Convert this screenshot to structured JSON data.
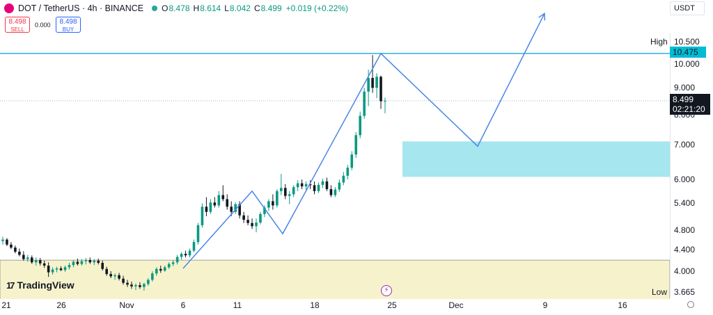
{
  "header": {
    "title": "DOT / TetherUS · 4h · BINANCE",
    "open_label": "O",
    "open": "8.478",
    "high_label": "H",
    "high": "8.614",
    "low_label": "L",
    "low": "8.042",
    "close_label": "C",
    "close": "8.499",
    "change": "+0.019 (+0.22%)"
  },
  "trade": {
    "sell_price": "8.498",
    "sell_label": "SELL",
    "spread": "0.000",
    "buy_price": "8.498",
    "buy_label": "BUY"
  },
  "unit": "USDT",
  "brand": "TradingView",
  "colors": {
    "up": "#089981",
    "down": "#131722",
    "pattern_line": "#4a86e8",
    "high_line": "#00a2d6",
    "supply_zone": "#a6e6ee",
    "demand_zone": "#f6f3cc",
    "price_tag": "#131722",
    "high_tag": "#00bcd4",
    "alert_icon": "#9c27b0"
  },
  "icons": {
    "symbol": "polkadot-logo-icon",
    "status": "market-status-dot-icon",
    "alert": "lightning-bolt-icon",
    "settings": "settings-gear-icon"
  },
  "chart_data": {
    "type": "candlestick",
    "title": "DOT / TetherUS · 4h · BINANCE",
    "y_scale": "log",
    "ylim": [
      3.52,
      12.6
    ],
    "y_ticks": [
      "10.000",
      "9.000",
      "8.000",
      "7.000",
      "6.000",
      "5.400",
      "4.800",
      "4.400",
      "4.000"
    ],
    "x_ticks": [
      "21",
      "26",
      "Nov",
      "6",
      "11",
      "18",
      "25",
      "Dec",
      "9",
      "16"
    ],
    "high": {
      "label": "High",
      "value": "10.500",
      "marker": "10.475"
    },
    "low": {
      "label": "Low",
      "value": "3.665"
    },
    "current_price": {
      "value": "8.499",
      "countdown": "02:21:20"
    },
    "candles": [
      {
        "o": 4.57,
        "h": 4.66,
        "l": 4.5,
        "c": 4.6
      },
      {
        "o": 4.6,
        "h": 4.63,
        "l": 4.47,
        "c": 4.5
      },
      {
        "o": 4.5,
        "h": 4.55,
        "l": 4.41,
        "c": 4.44
      },
      {
        "o": 4.44,
        "h": 4.48,
        "l": 4.33,
        "c": 4.36
      },
      {
        "o": 4.36,
        "h": 4.42,
        "l": 4.27,
        "c": 4.3
      },
      {
        "o": 4.3,
        "h": 4.37,
        "l": 4.19,
        "c": 4.22
      },
      {
        "o": 4.22,
        "h": 4.3,
        "l": 4.17,
        "c": 4.25
      },
      {
        "o": 4.25,
        "h": 4.29,
        "l": 4.13,
        "c": 4.16
      },
      {
        "o": 4.16,
        "h": 4.25,
        "l": 4.1,
        "c": 4.2
      },
      {
        "o": 4.2,
        "h": 4.24,
        "l": 4.1,
        "c": 4.14
      },
      {
        "o": 4.14,
        "h": 4.19,
        "l": 4.06,
        "c": 4.1
      },
      {
        "o": 4.1,
        "h": 4.16,
        "l": 3.9,
        "c": 3.98
      },
      {
        "o": 3.98,
        "h": 4.07,
        "l": 3.94,
        "c": 4.03
      },
      {
        "o": 4.03,
        "h": 4.08,
        "l": 3.98,
        "c": 4.05
      },
      {
        "o": 4.05,
        "h": 4.09,
        "l": 4.0,
        "c": 4.02
      },
      {
        "o": 4.02,
        "h": 4.1,
        "l": 3.99,
        "c": 4.07
      },
      {
        "o": 4.07,
        "h": 4.15,
        "l": 4.03,
        "c": 4.11
      },
      {
        "o": 4.11,
        "h": 4.2,
        "l": 4.07,
        "c": 4.17
      },
      {
        "o": 4.17,
        "h": 4.23,
        "l": 4.1,
        "c": 4.13
      },
      {
        "o": 4.13,
        "h": 4.22,
        "l": 4.1,
        "c": 4.18
      },
      {
        "o": 4.18,
        "h": 4.24,
        "l": 4.12,
        "c": 4.2
      },
      {
        "o": 4.2,
        "h": 4.25,
        "l": 4.13,
        "c": 4.16
      },
      {
        "o": 4.16,
        "h": 4.22,
        "l": 4.11,
        "c": 4.19
      },
      {
        "o": 4.19,
        "h": 4.23,
        "l": 4.12,
        "c": 4.15
      },
      {
        "o": 4.15,
        "h": 4.19,
        "l": 4.01,
        "c": 4.04
      },
      {
        "o": 4.04,
        "h": 4.08,
        "l": 3.92,
        "c": 3.95
      },
      {
        "o": 3.95,
        "h": 4.0,
        "l": 3.88,
        "c": 3.91
      },
      {
        "o": 3.91,
        "h": 3.96,
        "l": 3.85,
        "c": 3.93
      },
      {
        "o": 3.93,
        "h": 3.97,
        "l": 3.84,
        "c": 3.87
      },
      {
        "o": 3.87,
        "h": 3.92,
        "l": 3.77,
        "c": 3.8
      },
      {
        "o": 3.8,
        "h": 3.85,
        "l": 3.73,
        "c": 3.77
      },
      {
        "o": 3.77,
        "h": 3.82,
        "l": 3.7,
        "c": 3.74
      },
      {
        "o": 3.74,
        "h": 3.79,
        "l": 3.68,
        "c": 3.76
      },
      {
        "o": 3.76,
        "h": 3.81,
        "l": 3.7,
        "c": 3.73
      },
      {
        "o": 3.73,
        "h": 3.8,
        "l": 3.67,
        "c": 3.78
      },
      {
        "o": 3.78,
        "h": 3.88,
        "l": 3.75,
        "c": 3.85
      },
      {
        "o": 3.85,
        "h": 4.0,
        "l": 3.82,
        "c": 3.96
      },
      {
        "o": 3.96,
        "h": 4.07,
        "l": 3.92,
        "c": 4.04
      },
      {
        "o": 4.04,
        "h": 4.1,
        "l": 3.97,
        "c": 4.01
      },
      {
        "o": 4.01,
        "h": 4.1,
        "l": 3.99,
        "c": 4.07
      },
      {
        "o": 4.07,
        "h": 4.16,
        "l": 4.04,
        "c": 4.13
      },
      {
        "o": 4.13,
        "h": 4.2,
        "l": 4.09,
        "c": 4.16
      },
      {
        "o": 4.16,
        "h": 4.3,
        "l": 4.12,
        "c": 4.26
      },
      {
        "o": 4.26,
        "h": 4.35,
        "l": 4.21,
        "c": 4.32
      },
      {
        "o": 4.32,
        "h": 4.38,
        "l": 4.25,
        "c": 4.29
      },
      {
        "o": 4.29,
        "h": 4.42,
        "l": 4.25,
        "c": 4.38
      },
      {
        "o": 4.38,
        "h": 4.6,
        "l": 4.35,
        "c": 4.55
      },
      {
        "o": 4.55,
        "h": 4.95,
        "l": 4.5,
        "c": 4.9
      },
      {
        "o": 4.9,
        "h": 5.4,
        "l": 4.85,
        "c": 5.32
      },
      {
        "o": 5.32,
        "h": 5.55,
        "l": 5.1,
        "c": 5.2
      },
      {
        "o": 5.2,
        "h": 5.5,
        "l": 5.15,
        "c": 5.42
      },
      {
        "o": 5.42,
        "h": 5.55,
        "l": 5.3,
        "c": 5.35
      },
      {
        "o": 5.35,
        "h": 5.7,
        "l": 5.3,
        "c": 5.6
      },
      {
        "o": 5.6,
        "h": 5.85,
        "l": 5.45,
        "c": 5.5
      },
      {
        "o": 5.5,
        "h": 5.62,
        "l": 5.25,
        "c": 5.32
      },
      {
        "o": 5.32,
        "h": 5.45,
        "l": 5.1,
        "c": 5.2
      },
      {
        "o": 5.2,
        "h": 5.42,
        "l": 5.15,
        "c": 5.38
      },
      {
        "o": 5.38,
        "h": 5.45,
        "l": 5.05,
        "c": 5.12
      },
      {
        "o": 5.12,
        "h": 5.2,
        "l": 4.95,
        "c": 5.02
      },
      {
        "o": 5.02,
        "h": 5.12,
        "l": 4.9,
        "c": 4.95
      },
      {
        "o": 4.95,
        "h": 5.05,
        "l": 4.82,
        "c": 4.88
      },
      {
        "o": 4.88,
        "h": 5.05,
        "l": 4.75,
        "c": 4.96
      },
      {
        "o": 4.96,
        "h": 5.2,
        "l": 4.92,
        "c": 5.15
      },
      {
        "o": 5.15,
        "h": 5.35,
        "l": 5.08,
        "c": 5.3
      },
      {
        "o": 5.3,
        "h": 5.5,
        "l": 5.22,
        "c": 5.45
      },
      {
        "o": 5.45,
        "h": 5.62,
        "l": 5.25,
        "c": 5.35
      },
      {
        "o": 5.35,
        "h": 5.75,
        "l": 5.3,
        "c": 5.7
      },
      {
        "o": 5.7,
        "h": 6.15,
        "l": 5.6,
        "c": 5.78
      },
      {
        "o": 5.78,
        "h": 5.88,
        "l": 5.5,
        "c": 5.58
      },
      {
        "o": 5.58,
        "h": 5.7,
        "l": 5.38,
        "c": 5.62
      },
      {
        "o": 5.62,
        "h": 5.85,
        "l": 5.55,
        "c": 5.8
      },
      {
        "o": 5.8,
        "h": 5.98,
        "l": 5.7,
        "c": 5.9
      },
      {
        "o": 5.9,
        "h": 6.0,
        "l": 5.75,
        "c": 5.82
      },
      {
        "o": 5.82,
        "h": 5.95,
        "l": 5.7,
        "c": 5.88
      },
      {
        "o": 5.88,
        "h": 5.98,
        "l": 5.75,
        "c": 5.85
      },
      {
        "o": 5.85,
        "h": 5.95,
        "l": 5.62,
        "c": 5.7
      },
      {
        "o": 5.7,
        "h": 5.92,
        "l": 5.65,
        "c": 5.86
      },
      {
        "o": 5.86,
        "h": 6.02,
        "l": 5.78,
        "c": 5.95
      },
      {
        "o": 5.95,
        "h": 6.05,
        "l": 5.7,
        "c": 5.75
      },
      {
        "o": 5.75,
        "h": 5.85,
        "l": 5.55,
        "c": 5.6
      },
      {
        "o": 5.6,
        "h": 5.8,
        "l": 5.55,
        "c": 5.74
      },
      {
        "o": 5.74,
        "h": 6.0,
        "l": 5.68,
        "c": 5.92
      },
      {
        "o": 5.92,
        "h": 6.2,
        "l": 5.85,
        "c": 6.1
      },
      {
        "o": 6.1,
        "h": 6.4,
        "l": 6.0,
        "c": 6.32
      },
      {
        "o": 6.32,
        "h": 6.8,
        "l": 6.25,
        "c": 6.7
      },
      {
        "o": 6.7,
        "h": 7.4,
        "l": 6.6,
        "c": 7.3
      },
      {
        "o": 7.3,
        "h": 8.1,
        "l": 7.2,
        "c": 7.95
      },
      {
        "o": 7.95,
        "h": 9.0,
        "l": 7.85,
        "c": 8.85
      },
      {
        "o": 8.85,
        "h": 9.75,
        "l": 8.3,
        "c": 9.4
      },
      {
        "o": 9.4,
        "h": 10.4,
        "l": 8.8,
        "c": 9.0
      },
      {
        "o": 9.0,
        "h": 9.6,
        "l": 8.6,
        "c": 9.45
      },
      {
        "o": 9.45,
        "h": 9.5,
        "l": 8.2,
        "c": 8.48
      },
      {
        "o": 8.478,
        "h": 8.614,
        "l": 8.042,
        "c": 8.499
      }
    ],
    "pattern_polyline": [
      [
        "Nov 6",
        4.05
      ],
      [
        "Nov 12",
        5.7
      ],
      [
        "Nov 15",
        4.72
      ],
      [
        "Nov 24",
        10.475
      ],
      [
        "Dec 2",
        6.95
      ],
      [
        "Dec 7",
        12.5
      ]
    ],
    "zones": [
      {
        "name": "target zone",
        "from": 6.07,
        "to": 7.1,
        "start": "Nov 26"
      },
      {
        "name": "base zone",
        "from": 3.52,
        "to": 4.2,
        "start": "start"
      }
    ],
    "high_line": 10.475,
    "grid": false,
    "legend": "none"
  }
}
